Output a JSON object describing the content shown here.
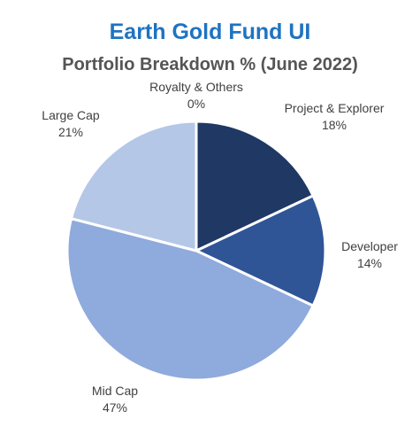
{
  "chart_data": {
    "type": "pie",
    "title": "Earth Gold Fund UI",
    "subtitle": "Portfolio Breakdown % (June 2022)",
    "categories": [
      "Project & Explorer",
      "Developer",
      "Mid Cap",
      "Large Cap",
      "Royalty & Others"
    ],
    "values": [
      18,
      14,
      47,
      21,
      0
    ],
    "value_labels": [
      "18%",
      "14%",
      "47%",
      "21%",
      "0%"
    ],
    "colors": [
      "#1f3864",
      "#2f5597",
      "#8faadc",
      "#b4c7e7",
      "#dae3f3"
    ],
    "start": "12 o'clock",
    "direction": "clockwise",
    "legend": "none",
    "labels": "outside"
  }
}
